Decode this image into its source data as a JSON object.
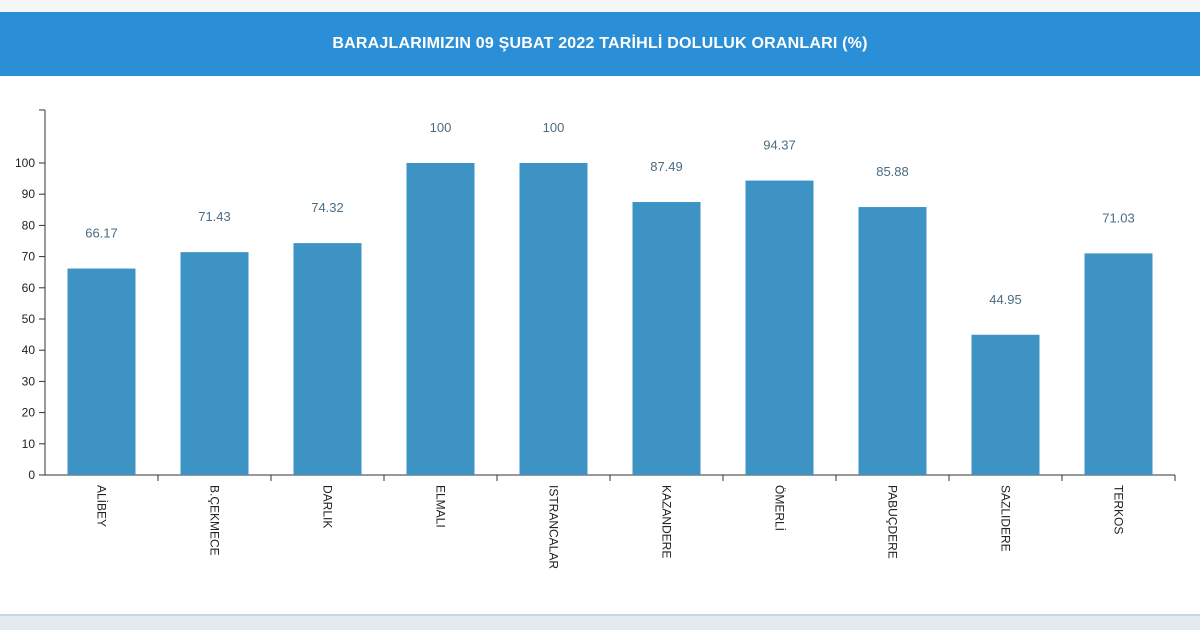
{
  "header": {
    "title": "BARAJLARIMIZIN 09 ŞUBAT 2022 TARİHLİ DOLULUK ORANLARI (%)"
  },
  "colors": {
    "header_bg": "#2a8fd6",
    "bar": "#3d93c4",
    "value_label": "#4a6c84"
  },
  "chart_data": {
    "type": "bar",
    "title": "BARAJLARIMIZIN 09 ŞUBAT 2022 TARİHLİ DOLULUK ORANLARI (%)",
    "categories": [
      "ALİBEY",
      "B.ÇEKMECE",
      "DARLIK",
      "ELMALI",
      "ISTRANCALAR",
      "KAZANDERE",
      "ÖMERLİ",
      "PABUÇDERE",
      "SAZLIDERE",
      "TERKOS"
    ],
    "values": [
      66.17,
      71.43,
      74.32,
      100,
      100,
      87.49,
      94.37,
      85.88,
      44.95,
      71.03
    ],
    "value_labels": [
      "66.17",
      "71.43",
      "74.32",
      "100",
      "100",
      "87.49",
      "94.37",
      "85.88",
      "44.95",
      "71.03"
    ],
    "yticks": [
      "0",
      "10",
      "20",
      "30",
      "40",
      "50",
      "60",
      "70",
      "80",
      "90",
      "100"
    ],
    "ylim": [
      0,
      117
    ],
    "xlabel": "",
    "ylabel": "",
    "grid": false,
    "legend": "none"
  }
}
